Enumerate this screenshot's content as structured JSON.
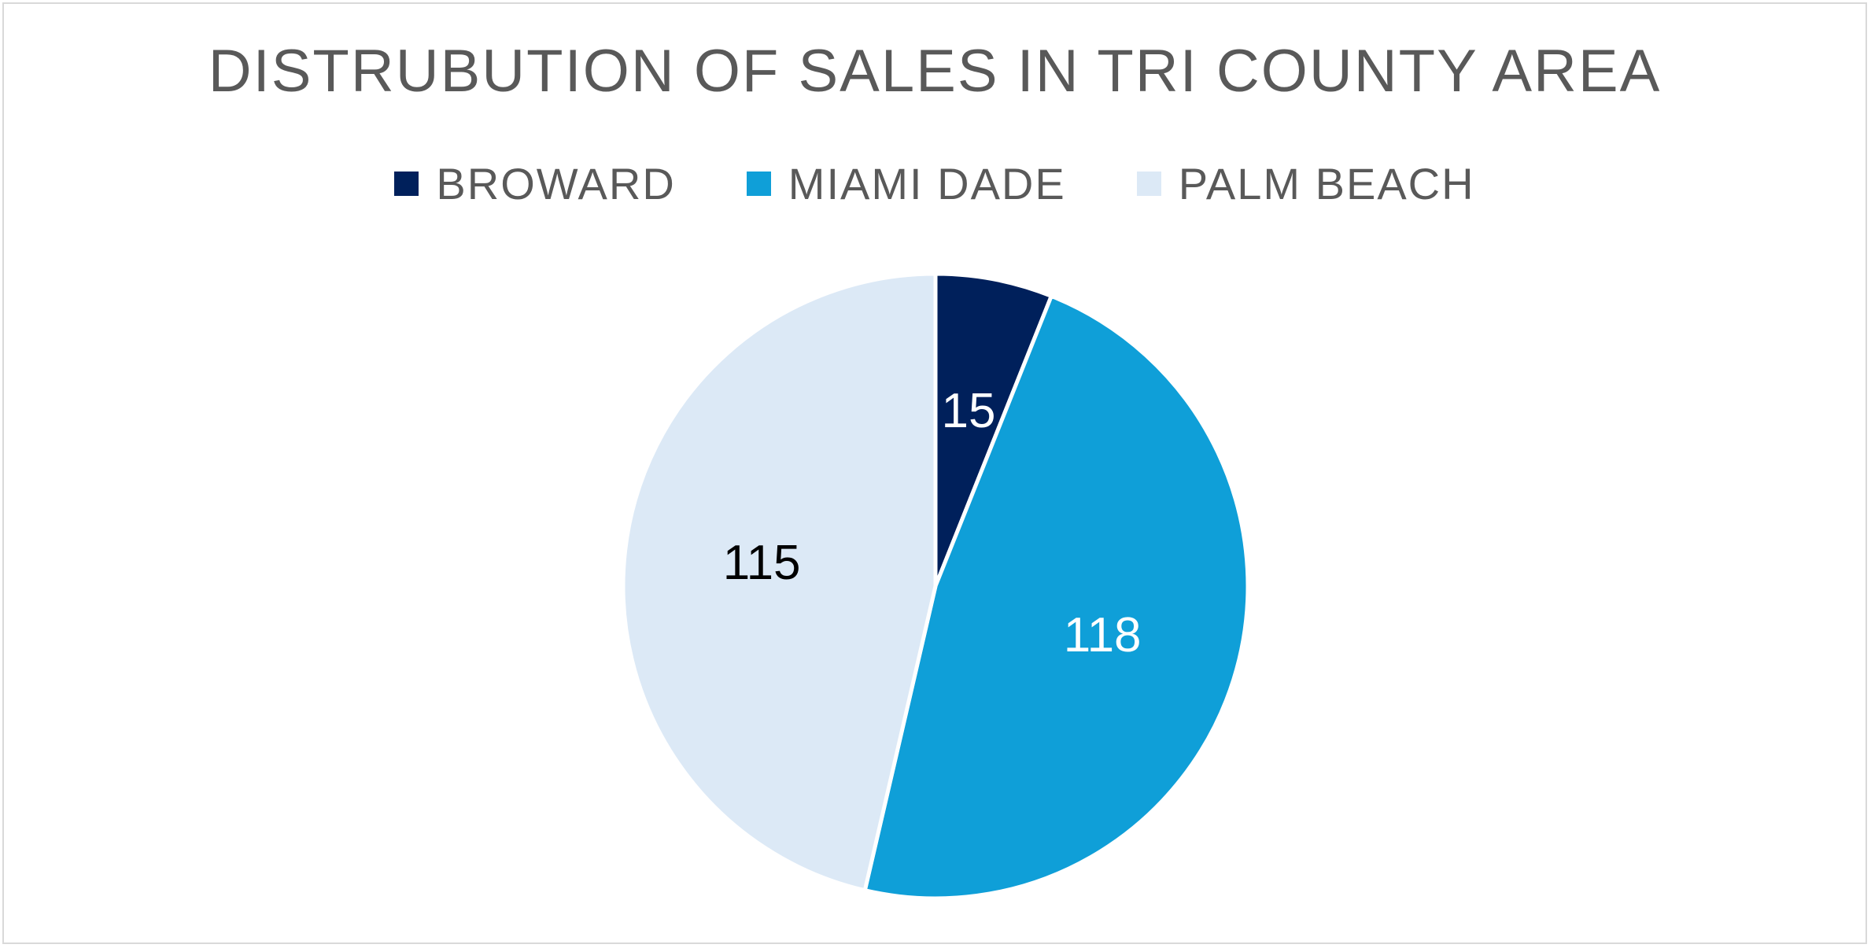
{
  "chart_data": {
    "type": "pie",
    "title": "DISTRUBUTION OF SALES IN TRI COUNTY AREA",
    "categories": [
      "BROWARD",
      "MIAMI DADE",
      "PALM BEACH"
    ],
    "values": [
      15,
      118,
      115
    ],
    "data_labels": [
      "15",
      "118",
      "115"
    ],
    "colors": [
      "#00205b",
      "#0f9fd8",
      "#dce9f6"
    ],
    "label_colors": [
      "#ffffff",
      "#ffffff",
      "#000000"
    ],
    "legend_position": "top",
    "start_angle": "12 o'clock",
    "direction": "clockwise"
  }
}
